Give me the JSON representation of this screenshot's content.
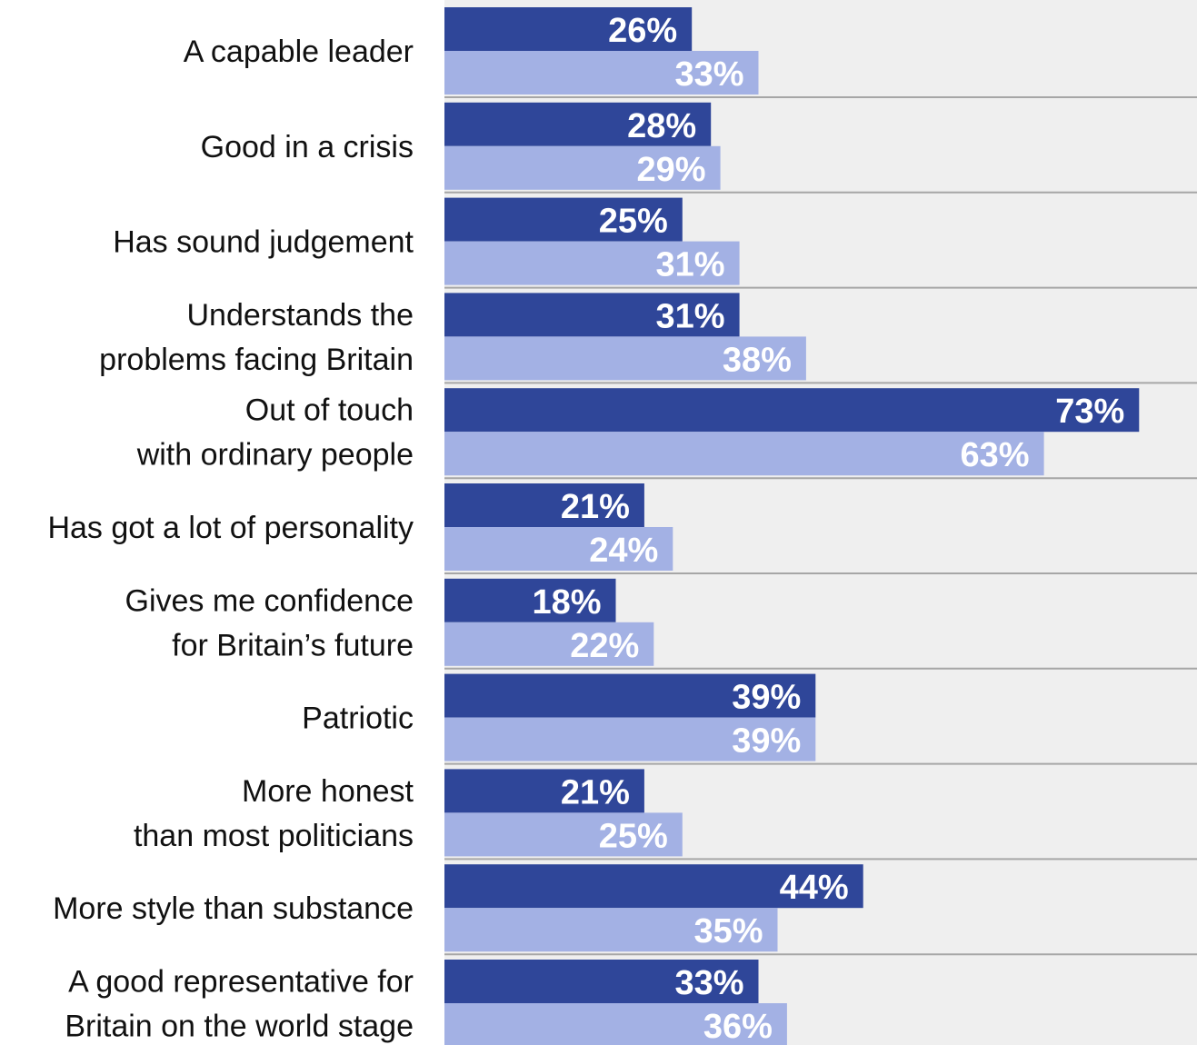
{
  "chart_data": {
    "type": "bar",
    "orientation": "horizontal",
    "title": "",
    "xlabel": "",
    "ylabel": "",
    "xlim": [
      0,
      80
    ],
    "grid": false,
    "legend": "none",
    "value_suffix": "%",
    "categories": [
      [
        "A capable leader"
      ],
      [
        "Good in a crisis"
      ],
      [
        "Has sound judgement"
      ],
      [
        "Understands the",
        "problems facing Britain"
      ],
      [
        "Out of touch",
        "with ordinary people"
      ],
      [
        "Has got a lot of personality"
      ],
      [
        "Gives me confidence",
        "for Britain’s future"
      ],
      [
        "Patriotic"
      ],
      [
        "More honest",
        "than most politicians"
      ],
      [
        "More style than substance"
      ],
      [
        "A good representative for",
        "Britain on the world stage"
      ]
    ],
    "series": [
      {
        "color": "#2f4699",
        "values": [
          26,
          28,
          25,
          31,
          73,
          21,
          18,
          39,
          21,
          44,
          33
        ]
      },
      {
        "color": "#a3b1e4",
        "values": [
          33,
          29,
          31,
          38,
          63,
          24,
          22,
          39,
          25,
          35,
          36
        ]
      }
    ],
    "colors": {
      "panel_background": "#efefef",
      "separator": "#a6a6a6",
      "label_text": "#111111",
      "value_text": "#ffffff"
    }
  }
}
